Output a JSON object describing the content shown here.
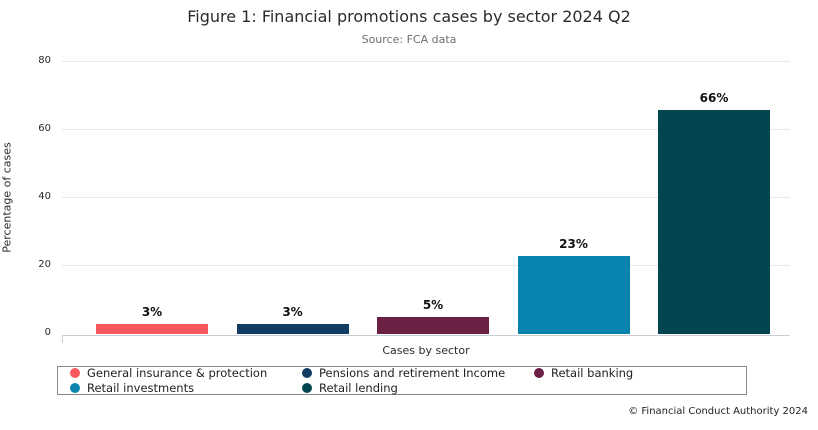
{
  "footer": "© Financial Conduct Authority 2024",
  "chart_data": {
    "type": "bar",
    "title": "Figure 1: Financial promotions cases by sector 2024 Q2",
    "subtitle": "Source: FCA data",
    "categories": [
      "General insurance & protection",
      "Pensions and retirement Income",
      "Retail banking",
      "Retail investments",
      "Retail lending"
    ],
    "values": [
      3,
      3,
      5,
      23,
      66
    ],
    "value_labels": [
      "3%",
      "3%",
      "5%",
      "23%",
      "66%"
    ],
    "colors": [
      "#fa585f",
      "#133c63",
      "#6b2046",
      "#0884af",
      "#03454e"
    ],
    "xlabel": "Cases by sector",
    "ylabel": "Percentage of cases",
    "ylim": [
      0,
      80
    ],
    "yticks": [
      0,
      20,
      40,
      60,
      80
    ],
    "grid": true,
    "legend_position": "bottom",
    "gridline_color": "#e7e9ed",
    "axis_line_color": "#c8cfd8"
  }
}
